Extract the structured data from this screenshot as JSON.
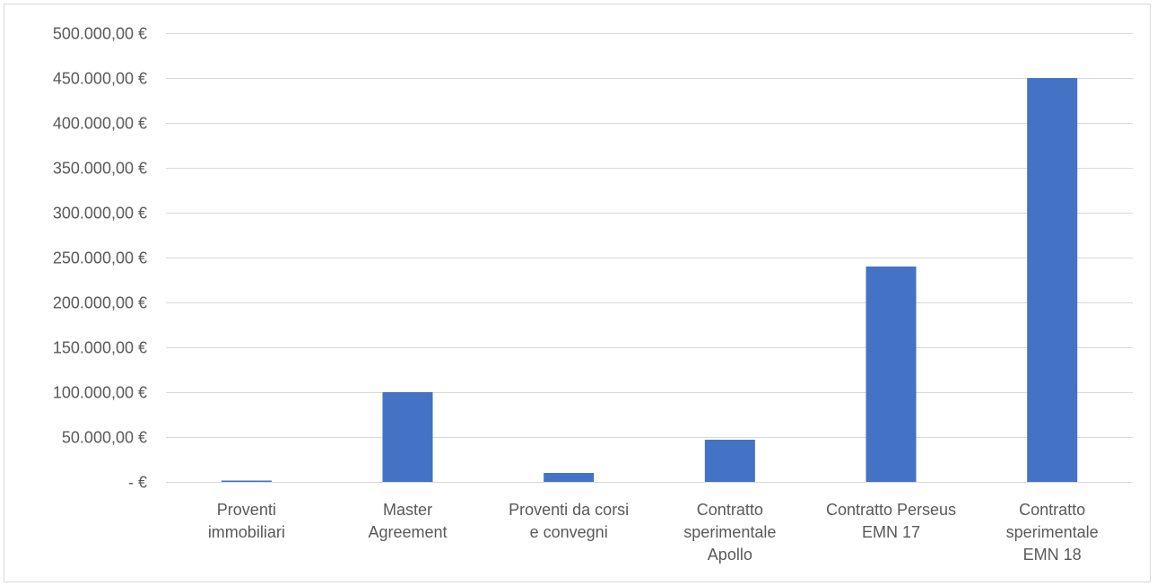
{
  "chart_data": {
    "type": "bar",
    "title": "",
    "xlabel": "",
    "ylabel": "",
    "categories": [
      [
        "Proventi",
        "immobiliari"
      ],
      [
        "Master",
        "Agreement"
      ],
      [
        "Proventi da corsi",
        "e convegni"
      ],
      [
        "Contratto",
        "sperimentale",
        "Apollo"
      ],
      [
        "Contratto Perseus",
        "EMN 17"
      ],
      [
        "Contratto",
        "sperimentale",
        "EMN 18"
      ]
    ],
    "values": [
      1500,
      100000,
      10000,
      47000,
      240000,
      450000
    ],
    "ylim": [
      0,
      500000
    ],
    "y_ticks": [
      0,
      50000,
      100000,
      150000,
      200000,
      250000,
      300000,
      350000,
      400000,
      450000,
      500000
    ],
    "y_tick_labels": [
      "-  €",
      "50.000,00 €",
      "100.000,00 €",
      "150.000,00 €",
      "200.000,00 €",
      "250.000,00 €",
      "300.000,00 €",
      "350.000,00 €",
      "400.000,00 €",
      "450.000,00 €",
      "500.000,00 €"
    ],
    "grid": true,
    "legend": "none",
    "bar_color": "#4472c4"
  }
}
